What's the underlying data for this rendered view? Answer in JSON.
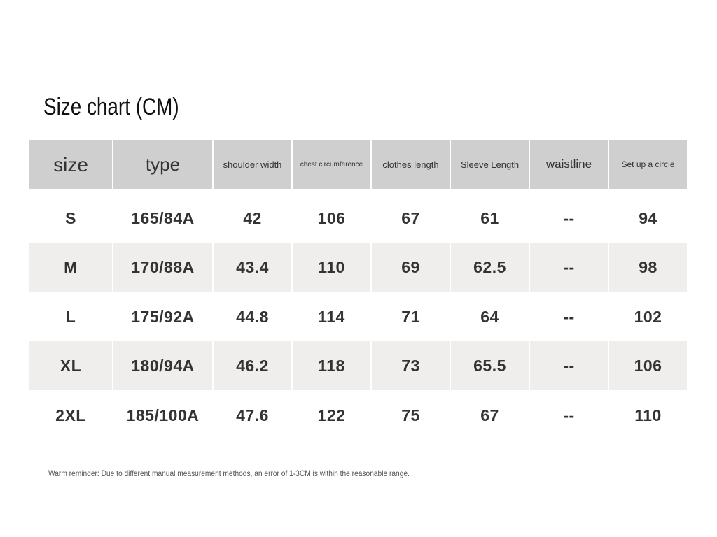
{
  "title": "Size chart (CM)",
  "table": {
    "header": [
      "size",
      "type",
      "shoulder width",
      "chest circumference",
      "clothes length",
      "Sleeve Length",
      "waistline",
      "Set up a circle"
    ],
    "rows": [
      [
        "S",
        "165/84A",
        42,
        106,
        67,
        61,
        "--",
        94
      ],
      [
        "M",
        "170/88A",
        43.4,
        110,
        69,
        62.5,
        "--",
        98
      ],
      [
        "L",
        "175/92A",
        44.8,
        114,
        71,
        64,
        "--",
        102
      ],
      [
        "XL",
        "180/94A",
        46.2,
        118,
        73,
        65.5,
        "--",
        106
      ],
      [
        "2XL",
        "185/100A",
        47.6,
        122,
        75,
        67,
        "--",
        110
      ]
    ]
  },
  "note": "Warm reminder: Due to different manual measurement methods, an error of 1-3CM is within the reasonable range."
}
